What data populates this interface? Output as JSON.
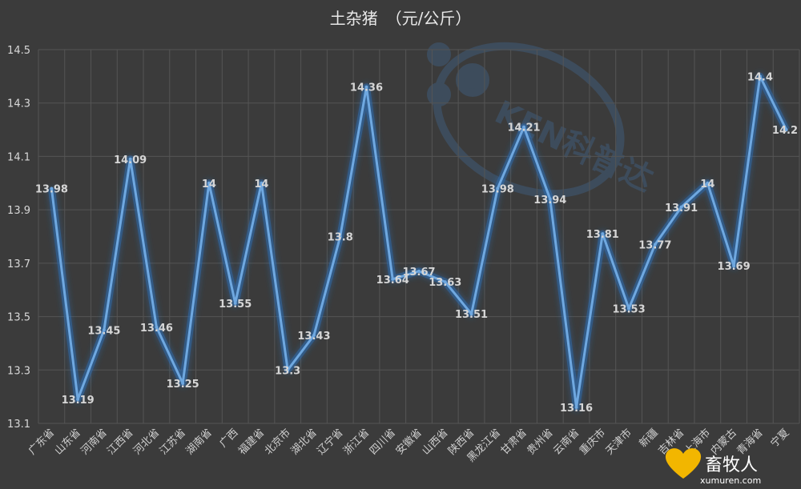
{
  "chart_data": {
    "type": "line",
    "title": "土杂猪　（元/公斤）",
    "xlabel": "",
    "ylabel": "",
    "ylim": [
      13.1,
      14.5
    ],
    "yticks": [
      "13.1",
      "13.3",
      "13.5",
      "13.7",
      "13.9",
      "14.1",
      "14.3",
      "14.5"
    ],
    "grid": true,
    "legend": "none",
    "colors": {
      "background": "#3b3b3b",
      "line": "#6fa8e0",
      "glow": "#2f6fb5",
      "grid": "#555555"
    },
    "categories": [
      "广东省",
      "山东省",
      "河南省",
      "江西省",
      "河北省",
      "江苏省",
      "湖南省",
      "广西",
      "福建省",
      "北京市",
      "湖北省",
      "辽宁省",
      "浙江省",
      "四川省",
      "安徽省",
      "山西省",
      "陕西省",
      "黑龙江省",
      "甘肃省",
      "贵州省",
      "云南省",
      "重庆市",
      "天津市",
      "新疆",
      "吉林省",
      "上海市",
      "内蒙古",
      "青海省",
      "宁夏"
    ],
    "values": [
      13.98,
      13.19,
      13.45,
      14.09,
      13.46,
      13.25,
      14,
      13.55,
      14,
      13.3,
      13.43,
      13.8,
      14.36,
      13.64,
      13.67,
      13.63,
      13.51,
      13.98,
      14.21,
      13.94,
      13.16,
      13.81,
      13.53,
      13.77,
      13.91,
      14,
      13.69,
      14.4,
      14.2
    ],
    "data_labels": [
      "13.98",
      "13.19",
      "13.45",
      "14.09",
      "13.46",
      "13.25",
      "14",
      "13.55",
      "14",
      "13.3",
      "13.43",
      "13.8",
      "14.36",
      "13.64",
      "13.67",
      "13.63",
      "13.51",
      "13.98",
      "14.21",
      "13.94",
      "13.16",
      "13.81",
      "13.53",
      "13.77",
      "13.91",
      "14",
      "13.69",
      "14.4",
      "14.2"
    ]
  },
  "watermark": {
    "text": "KEN科普达",
    "logo_text": "畜牧人",
    "logo_url": "xumuren.com"
  }
}
